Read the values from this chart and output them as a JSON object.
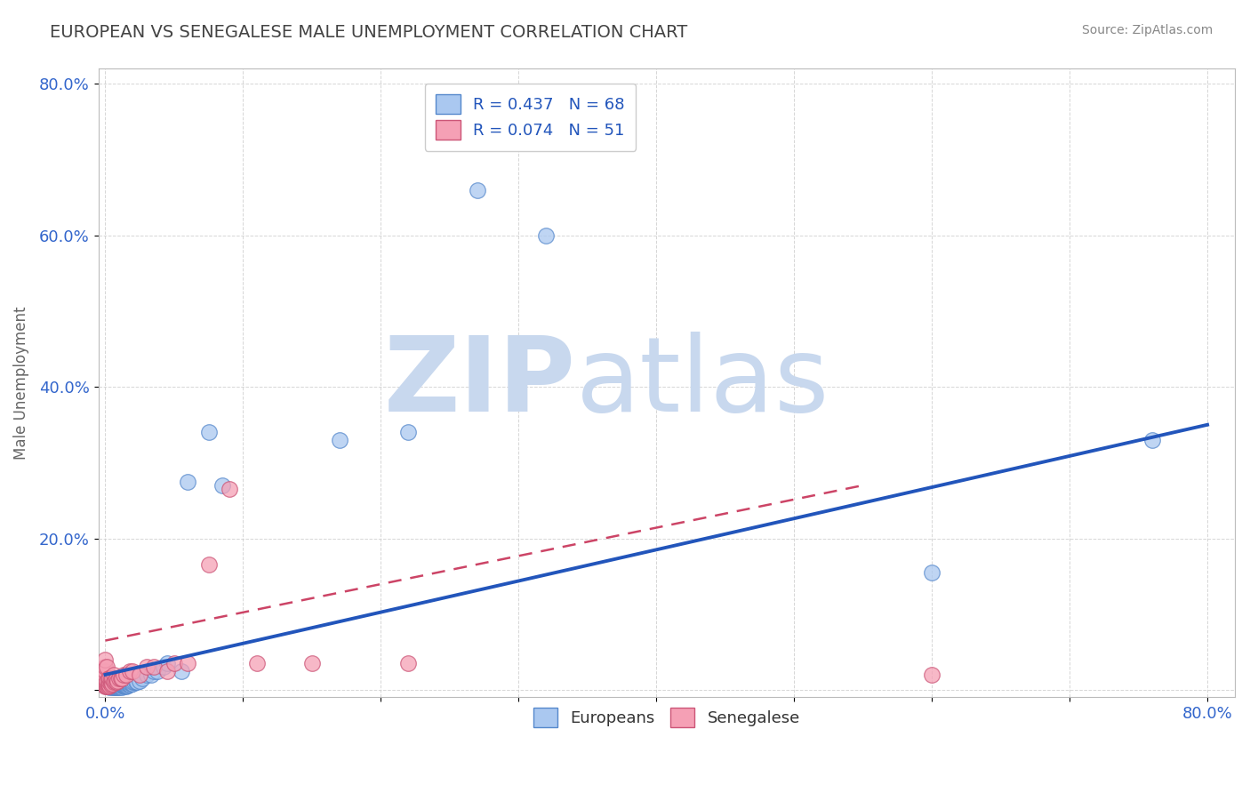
{
  "title": "EUROPEAN VS SENEGALESE MALE UNEMPLOYMENT CORRELATION CHART",
  "source_text": "Source: ZipAtlas.com",
  "ylabel": "Male Unemployment",
  "xlim": [
    -0.005,
    0.82
  ],
  "ylim": [
    -0.01,
    0.82
  ],
  "xticks": [
    0.0,
    0.1,
    0.2,
    0.3,
    0.4,
    0.5,
    0.6,
    0.7,
    0.8
  ],
  "yticks": [
    0.0,
    0.2,
    0.4,
    0.6,
    0.8
  ],
  "xticklabels": [
    "0.0%",
    "",
    "",
    "",
    "",
    "",
    "",
    "",
    "80.0%"
  ],
  "yticklabels": [
    "",
    "20.0%",
    "40.0%",
    "60.0%",
    "80.0%"
  ],
  "legend_r1": "R = 0.437",
  "legend_n1": "N = 68",
  "legend_r2": "R = 0.074",
  "legend_n2": "N = 51",
  "european_color": "#aac8f0",
  "senegalese_color": "#f5a0b5",
  "european_edge": "#5588cc",
  "senegalese_edge": "#cc5577",
  "trendline_european_color": "#2255bb",
  "trendline_senegalese_color": "#cc4466",
  "watermark_zip": "ZIP",
  "watermark_atlas": "atlas",
  "watermark_color_zip": "#c8d8ee",
  "watermark_color_atlas": "#c8d8ee",
  "background_color": "#ffffff",
  "grid_color": "#cccccc",
  "title_color": "#444444",
  "axis_label_color": "#666666",
  "legend_text_color": "#2255bb",
  "europeans_x": [
    0.001,
    0.002,
    0.003,
    0.003,
    0.004,
    0.004,
    0.005,
    0.005,
    0.005,
    0.006,
    0.006,
    0.007,
    0.007,
    0.007,
    0.007,
    0.008,
    0.008,
    0.008,
    0.009,
    0.009,
    0.009,
    0.01,
    0.01,
    0.01,
    0.01,
    0.011,
    0.011,
    0.012,
    0.012,
    0.012,
    0.013,
    0.013,
    0.013,
    0.014,
    0.014,
    0.015,
    0.015,
    0.015,
    0.016,
    0.016,
    0.017,
    0.017,
    0.018,
    0.018,
    0.019,
    0.02,
    0.02,
    0.021,
    0.022,
    0.023,
    0.025,
    0.027,
    0.03,
    0.033,
    0.035,
    0.038,
    0.042,
    0.045,
    0.055,
    0.06,
    0.075,
    0.085,
    0.17,
    0.22,
    0.27,
    0.32,
    0.6,
    0.76
  ],
  "europeans_y": [
    0.005,
    0.005,
    0.004,
    0.005,
    0.005,
    0.006,
    0.004,
    0.005,
    0.006,
    0.004,
    0.005,
    0.004,
    0.005,
    0.006,
    0.007,
    0.004,
    0.005,
    0.006,
    0.004,
    0.005,
    0.006,
    0.004,
    0.005,
    0.006,
    0.007,
    0.005,
    0.006,
    0.004,
    0.006,
    0.007,
    0.005,
    0.006,
    0.007,
    0.006,
    0.007,
    0.005,
    0.006,
    0.008,
    0.006,
    0.008,
    0.007,
    0.009,
    0.007,
    0.009,
    0.008,
    0.008,
    0.01,
    0.01,
    0.01,
    0.01,
    0.012,
    0.015,
    0.02,
    0.02,
    0.025,
    0.025,
    0.03,
    0.035,
    0.025,
    0.275,
    0.34,
    0.27,
    0.33,
    0.34,
    0.66,
    0.6,
    0.155,
    0.33
  ],
  "senegalese_x": [
    0.0,
    0.0,
    0.0,
    0.0,
    0.0,
    0.0,
    0.0,
    0.0,
    0.0,
    0.0,
    0.0,
    0.001,
    0.001,
    0.001,
    0.001,
    0.002,
    0.002,
    0.002,
    0.003,
    0.003,
    0.003,
    0.004,
    0.004,
    0.004,
    0.005,
    0.005,
    0.006,
    0.006,
    0.007,
    0.008,
    0.008,
    0.009,
    0.01,
    0.011,
    0.012,
    0.013,
    0.015,
    0.018,
    0.02,
    0.025,
    0.03,
    0.035,
    0.045,
    0.05,
    0.06,
    0.075,
    0.09,
    0.11,
    0.15,
    0.22,
    0.6
  ],
  "senegalese_y": [
    0.005,
    0.006,
    0.007,
    0.008,
    0.01,
    0.012,
    0.015,
    0.02,
    0.025,
    0.03,
    0.04,
    0.005,
    0.008,
    0.012,
    0.03,
    0.005,
    0.008,
    0.015,
    0.006,
    0.01,
    0.015,
    0.007,
    0.01,
    0.015,
    0.008,
    0.015,
    0.01,
    0.02,
    0.012,
    0.01,
    0.015,
    0.012,
    0.015,
    0.015,
    0.015,
    0.02,
    0.02,
    0.025,
    0.025,
    0.02,
    0.03,
    0.03,
    0.025,
    0.035,
    0.035,
    0.165,
    0.265,
    0.035,
    0.035,
    0.035,
    0.02
  ]
}
